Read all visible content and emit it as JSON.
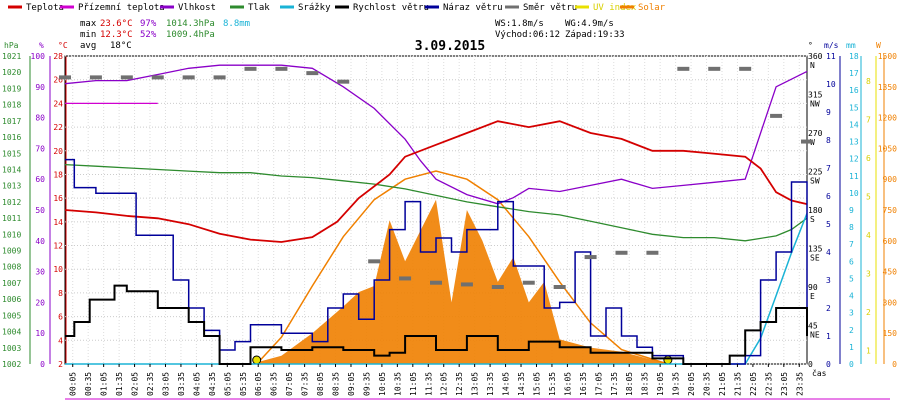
{
  "chart_data": {
    "type": "line",
    "title": "3.09.2015",
    "time_axis_label": "čas",
    "x_ticks": [
      "00:05",
      "00:35",
      "01:05",
      "01:35",
      "02:05",
      "02:35",
      "03:05",
      "03:35",
      "04:05",
      "04:35",
      "05:05",
      "05:35",
      "06:05",
      "06:35",
      "07:05",
      "07:35",
      "08:05",
      "08:35",
      "09:05",
      "09:35",
      "10:05",
      "10:35",
      "11:05",
      "11:35",
      "12:05",
      "12:35",
      "13:05",
      "13:35",
      "14:05",
      "14:35",
      "15:05",
      "15:35",
      "16:05",
      "16:35",
      "17:05",
      "17:35",
      "18:05",
      "18:35",
      "19:05",
      "19:35",
      "20:05",
      "20:35",
      "21:05",
      "21:35",
      "22:05",
      "22:35",
      "23:05",
      "23:35"
    ],
    "legend": [
      {
        "key": "teplota",
        "label": "Teplota",
        "color": "#d40000"
      },
      {
        "key": "prizemni",
        "label": "Přízemní teplota",
        "color": "#d000d0"
      },
      {
        "key": "vlhkost",
        "label": "Vlhkost",
        "color": "#8a00c8"
      },
      {
        "key": "tlak",
        "label": "Tlak",
        "color": "#2e8b2e"
      },
      {
        "key": "srazky",
        "label": "Srážky",
        "color": "#1ab3d6"
      },
      {
        "key": "rychlost",
        "label": "Rychlost větru",
        "color": "#000000"
      },
      {
        "key": "naraz",
        "label": "Náraz větru",
        "color": "#00009a"
      },
      {
        "key": "smer",
        "label": "Směr větru",
        "color": "#707070"
      },
      {
        "key": "uv",
        "label": "UV index",
        "color": "#e8e000"
      },
      {
        "key": "solar",
        "label": "Solar",
        "color": "#f08000"
      }
    ],
    "stats": {
      "max_label": "max",
      "min_label": "min",
      "avg_label": "avg",
      "max_temp": "23.6°C",
      "max_hum": "97%",
      "max_press": "1014.3hPa",
      "rain": "8.8mm",
      "min_temp": "12.3°C",
      "min_hum": "52%",
      "min_press": "1009.4hPa",
      "avg_temp": "18°C",
      "ws": "WS:1.8m/s",
      "wg": "WG:4.9m/s",
      "sunrise": "Východ:06:12",
      "sunset": "Západ:19:33"
    },
    "axes": {
      "press": {
        "unit": "hPa",
        "min": 1002,
        "max": 1021,
        "ticks": [
          "1021",
          "1020",
          "1019",
          "1018",
          "1017",
          "1016",
          "1015",
          "1014",
          "1013",
          "1012",
          "1011",
          "1010",
          "1009",
          "1008",
          "1007",
          "1006",
          "1005",
          "1004",
          "1003",
          "1002"
        ]
      },
      "hum": {
        "unit": "%",
        "min": 0,
        "max": 100,
        "ticks": [
          "100",
          "90",
          "80",
          "70",
          "60",
          "50",
          "40",
          "30",
          "20",
          "10",
          "0"
        ]
      },
      "temp": {
        "unit": "°C",
        "min": 2,
        "max": 28,
        "ticks": [
          "28",
          "26",
          "24",
          "22",
          "20",
          "18",
          "16",
          "14",
          "12",
          "10",
          "8",
          "6",
          "4",
          "2"
        ]
      },
      "dir": {
        "unit": "°",
        "ticks": [
          "360",
          "315",
          "270",
          "225",
          "180",
          "135",
          "90",
          "45",
          "0"
        ],
        "labels": [
          "N",
          "NW",
          "W",
          "SW",
          "S",
          "SE",
          "E",
          "NE",
          ""
        ]
      },
      "wind": {
        "unit": "m/s",
        "min": 0,
        "max": 11,
        "ticks": [
          "11",
          "10",
          "9",
          "8",
          "7",
          "6",
          "5",
          "4",
          "3",
          "2",
          "1",
          "0"
        ]
      },
      "rain": {
        "unit": "mm",
        "min": 0,
        "max": 18,
        "ticks": [
          "18",
          "17",
          "16",
          "15",
          "14",
          "13",
          "12",
          "11",
          "10",
          "9",
          "8",
          "7",
          "6",
          "5",
          "4",
          "3",
          "2",
          "1",
          "0"
        ]
      },
      "uv": {
        "unit": "",
        "ticks": [
          "8",
          "7",
          "6",
          "5",
          "4",
          "3",
          "2",
          "1"
        ]
      },
      "solar": {
        "unit": "W",
        "min": 0,
        "max": 1500,
        "ticks": [
          "1500",
          "1350",
          "1200",
          "1050",
          "900",
          "750",
          "600",
          "450",
          "300",
          "150",
          "0"
        ]
      }
    },
    "series": {
      "teplota": [
        [
          0,
          15
        ],
        [
          1,
          14.8
        ],
        [
          2,
          14.5
        ],
        [
          3,
          14.3
        ],
        [
          4,
          13.8
        ],
        [
          5,
          13
        ],
        [
          6,
          12.5
        ],
        [
          7,
          12.3
        ],
        [
          8,
          12.7
        ],
        [
          8.8,
          14
        ],
        [
          9.5,
          16
        ],
        [
          10.5,
          18
        ],
        [
          11,
          19.5
        ],
        [
          12,
          20.5
        ],
        [
          13,
          21.5
        ],
        [
          14,
          22.5
        ],
        [
          15,
          22
        ],
        [
          16,
          22.5
        ],
        [
          17,
          21.5
        ],
        [
          18,
          21
        ],
        [
          19,
          20
        ],
        [
          20,
          20
        ],
        [
          20.8,
          19.8
        ],
        [
          22,
          19.5
        ],
        [
          22.5,
          18.5
        ],
        [
          23,
          16.5
        ],
        [
          23.5,
          15.8
        ],
        [
          24,
          15.5
        ]
      ],
      "prizemni": [
        [
          0,
          24
        ],
        [
          0.5,
          24
        ],
        [
          1,
          24
        ],
        [
          1.5,
          24
        ],
        [
          2,
          24
        ],
        [
          2.5,
          24
        ],
        [
          3,
          24
        ]
      ],
      "vlhkost": [
        [
          0,
          91
        ],
        [
          1,
          92
        ],
        [
          2,
          92
        ],
        [
          3,
          94
        ],
        [
          4,
          96
        ],
        [
          5,
          97
        ],
        [
          6,
          97
        ],
        [
          7,
          97
        ],
        [
          8,
          96
        ],
        [
          9,
          90
        ],
        [
          10,
          83
        ],
        [
          11,
          73
        ],
        [
          11.5,
          66
        ],
        [
          12,
          60
        ],
        [
          13,
          55
        ],
        [
          14,
          52
        ],
        [
          14.5,
          54
        ],
        [
          15,
          57
        ],
        [
          16,
          56
        ],
        [
          17,
          58
        ],
        [
          18,
          60
        ],
        [
          19,
          57
        ],
        [
          20,
          58
        ],
        [
          21,
          59
        ],
        [
          22,
          60
        ],
        [
          22.5,
          75
        ],
        [
          23,
          90
        ],
        [
          24,
          95
        ]
      ],
      "tlak": [
        [
          0,
          1014.3
        ],
        [
          1,
          1014.2
        ],
        [
          2,
          1014.1
        ],
        [
          3,
          1014
        ],
        [
          4,
          1013.9
        ],
        [
          5,
          1013.8
        ],
        [
          6,
          1013.8
        ],
        [
          7,
          1013.6
        ],
        [
          8,
          1013.5
        ],
        [
          9,
          1013.3
        ],
        [
          10,
          1013.1
        ],
        [
          11,
          1012.8
        ],
        [
          12,
          1012.4
        ],
        [
          13,
          1012
        ],
        [
          14,
          1011.7
        ],
        [
          15,
          1011.4
        ],
        [
          16,
          1011.2
        ],
        [
          17,
          1010.8
        ],
        [
          18,
          1010.4
        ],
        [
          19,
          1010
        ],
        [
          20,
          1009.8
        ],
        [
          21,
          1009.8
        ],
        [
          22,
          1009.6
        ],
        [
          23,
          1009.9
        ],
        [
          23.5,
          1010.3
        ],
        [
          24,
          1011
        ]
      ],
      "srazky": [
        [
          0,
          0
        ],
        [
          22,
          0
        ],
        [
          22.5,
          1.5
        ],
        [
          23,
          4
        ],
        [
          23.5,
          6.5
        ],
        [
          24,
          8.8
        ]
      ],
      "rychlost": [
        [
          0,
          1
        ],
        [
          0.3,
          1.5
        ],
        [
          0.8,
          2.3
        ],
        [
          1.5,
          2.3
        ],
        [
          1.6,
          2.8
        ],
        [
          2,
          2.6
        ],
        [
          3,
          2
        ],
        [
          3.5,
          2
        ],
        [
          4,
          1.5
        ],
        [
          4.5,
          1
        ],
        [
          5,
          0
        ],
        [
          6,
          0.6
        ],
        [
          7,
          0.5
        ],
        [
          8,
          0.6
        ],
        [
          9,
          0.5
        ],
        [
          10,
          0.3
        ],
        [
          10.5,
          0.4
        ],
        [
          11,
          1
        ],
        [
          12,
          0.5
        ],
        [
          13,
          1
        ],
        [
          14,
          0.5
        ],
        [
          15,
          0.8
        ],
        [
          16,
          0.6
        ],
        [
          17,
          0.4
        ],
        [
          18,
          0.4
        ],
        [
          19,
          0.2
        ],
        [
          20,
          0
        ],
        [
          21,
          0
        ],
        [
          21.5,
          0.3
        ],
        [
          22,
          1.2
        ],
        [
          22.5,
          1.5
        ],
        [
          23,
          2
        ],
        [
          23.5,
          2
        ],
        [
          24,
          1
        ]
      ],
      "naraz": [
        [
          0,
          7.3
        ],
        [
          0.3,
          6.3
        ],
        [
          1,
          6.1
        ],
        [
          2,
          6.1
        ],
        [
          2.3,
          4.6
        ],
        [
          3,
          4.6
        ],
        [
          3.5,
          3
        ],
        [
          4,
          2
        ],
        [
          4.5,
          1.2
        ],
        [
          5,
          0.5
        ],
        [
          5.5,
          0.8
        ],
        [
          6,
          1.4
        ],
        [
          7,
          1.1
        ],
        [
          8,
          0.8
        ],
        [
          8.5,
          2
        ],
        [
          9,
          2.5
        ],
        [
          9.5,
          1.6
        ],
        [
          10,
          3
        ],
        [
          10.5,
          4.8
        ],
        [
          11,
          5.8
        ],
        [
          11.5,
          4
        ],
        [
          12,
          4.5
        ],
        [
          12.5,
          4
        ],
        [
          13,
          4.8
        ],
        [
          14,
          5.8
        ],
        [
          14.5,
          3.5
        ],
        [
          15,
          3.5
        ],
        [
          15.5,
          2
        ],
        [
          16,
          2.2
        ],
        [
          16.5,
          4
        ],
        [
          17,
          1
        ],
        [
          17.5,
          2
        ],
        [
          18,
          1
        ],
        [
          18.5,
          0.6
        ],
        [
          19,
          0.3
        ],
        [
          20,
          0
        ],
        [
          21,
          0
        ],
        [
          22,
          0.3
        ],
        [
          22.5,
          3
        ],
        [
          23,
          4
        ],
        [
          23.5,
          6.5
        ],
        [
          24,
          2
        ]
      ],
      "smer": [
        [
          0,
          335
        ],
        [
          1,
          335
        ],
        [
          2,
          335
        ],
        [
          3,
          335
        ],
        [
          4,
          335
        ],
        [
          5,
          335
        ],
        [
          6,
          345
        ],
        [
          7,
          345
        ],
        [
          8,
          340
        ],
        [
          9,
          330
        ],
        [
          10,
          120
        ],
        [
          11,
          100
        ],
        [
          12,
          95
        ],
        [
          13,
          93
        ],
        [
          14,
          90
        ],
        [
          15,
          95
        ],
        [
          16,
          90
        ],
        [
          17,
          125
        ],
        [
          18,
          130
        ],
        [
          19,
          130
        ],
        [
          20,
          345
        ],
        [
          21,
          345
        ],
        [
          22,
          345
        ],
        [
          23,
          290
        ],
        [
          24,
          260
        ]
      ],
      "solar": [
        [
          0,
          0
        ],
        [
          6,
          0
        ],
        [
          7,
          40
        ],
        [
          8,
          150
        ],
        [
          9,
          280
        ],
        [
          9.5,
          350
        ],
        [
          10,
          380
        ],
        [
          10.5,
          700
        ],
        [
          11,
          500
        ],
        [
          11.5,
          650
        ],
        [
          12,
          800
        ],
        [
          12.5,
          300
        ],
        [
          13,
          750
        ],
        [
          13.5,
          600
        ],
        [
          14,
          400
        ],
        [
          14.5,
          520
        ],
        [
          15,
          300
        ],
        [
          15.5,
          400
        ],
        [
          16,
          120
        ],
        [
          17,
          80
        ],
        [
          18,
          60
        ],
        [
          19,
          20
        ],
        [
          19.5,
          0
        ],
        [
          24,
          0
        ]
      ],
      "solar_theory": [
        [
          6.2,
          0
        ],
        [
          7,
          130
        ],
        [
          8,
          380
        ],
        [
          9,
          620
        ],
        [
          10,
          800
        ],
        [
          11,
          900
        ],
        [
          12,
          940
        ],
        [
          13,
          900
        ],
        [
          14,
          800
        ],
        [
          15,
          620
        ],
        [
          16,
          400
        ],
        [
          17,
          200
        ],
        [
          18,
          70
        ],
        [
          19.5,
          0
        ]
      ]
    }
  }
}
